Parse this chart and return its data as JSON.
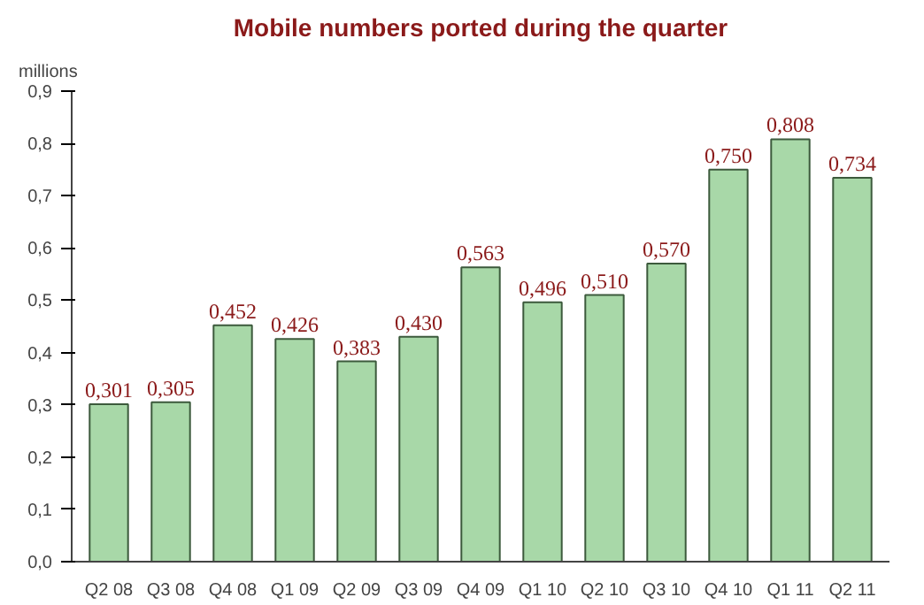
{
  "chart_data": {
    "type": "bar",
    "title": "Mobile numbers ported during the quarter",
    "ylabel": "millions",
    "categories": [
      "Q2 08",
      "Q3 08",
      "Q4 08",
      "Q1 09",
      "Q2 09",
      "Q3 09",
      "Q4 09",
      "Q1 10",
      "Q2 10",
      "Q3 10",
      "Q4 10",
      "Q1 11",
      "Q2 11"
    ],
    "values": [
      0.301,
      0.305,
      0.452,
      0.426,
      0.383,
      0.43,
      0.563,
      0.496,
      0.51,
      0.57,
      0.75,
      0.808,
      0.734
    ],
    "value_labels": [
      "0,301",
      "0,305",
      "0,452",
      "0,426",
      "0,383",
      "0,430",
      "0,563",
      "0,496",
      "0,510",
      "0,570",
      "0,750",
      "0,808",
      "0,734"
    ],
    "color": "#a8d8a8",
    "ylim": [
      0,
      0.9
    ],
    "yticks": [
      {
        "value": 0,
        "label": "0,0"
      },
      {
        "value": 0.1,
        "label": "0,1"
      },
      {
        "value": 0.2,
        "label": "0,2"
      },
      {
        "value": 0.3,
        "label": "0,3"
      },
      {
        "value": 0.4,
        "label": "0,4"
      },
      {
        "value": 0.5,
        "label": "0,5"
      },
      {
        "value": 0.6,
        "label": "0,6"
      },
      {
        "value": 0.7,
        "label": "0,7"
      },
      {
        "value": 0.8,
        "label": "0,8"
      },
      {
        "value": 0.9,
        "label": "0,9"
      }
    ],
    "grid": false
  }
}
